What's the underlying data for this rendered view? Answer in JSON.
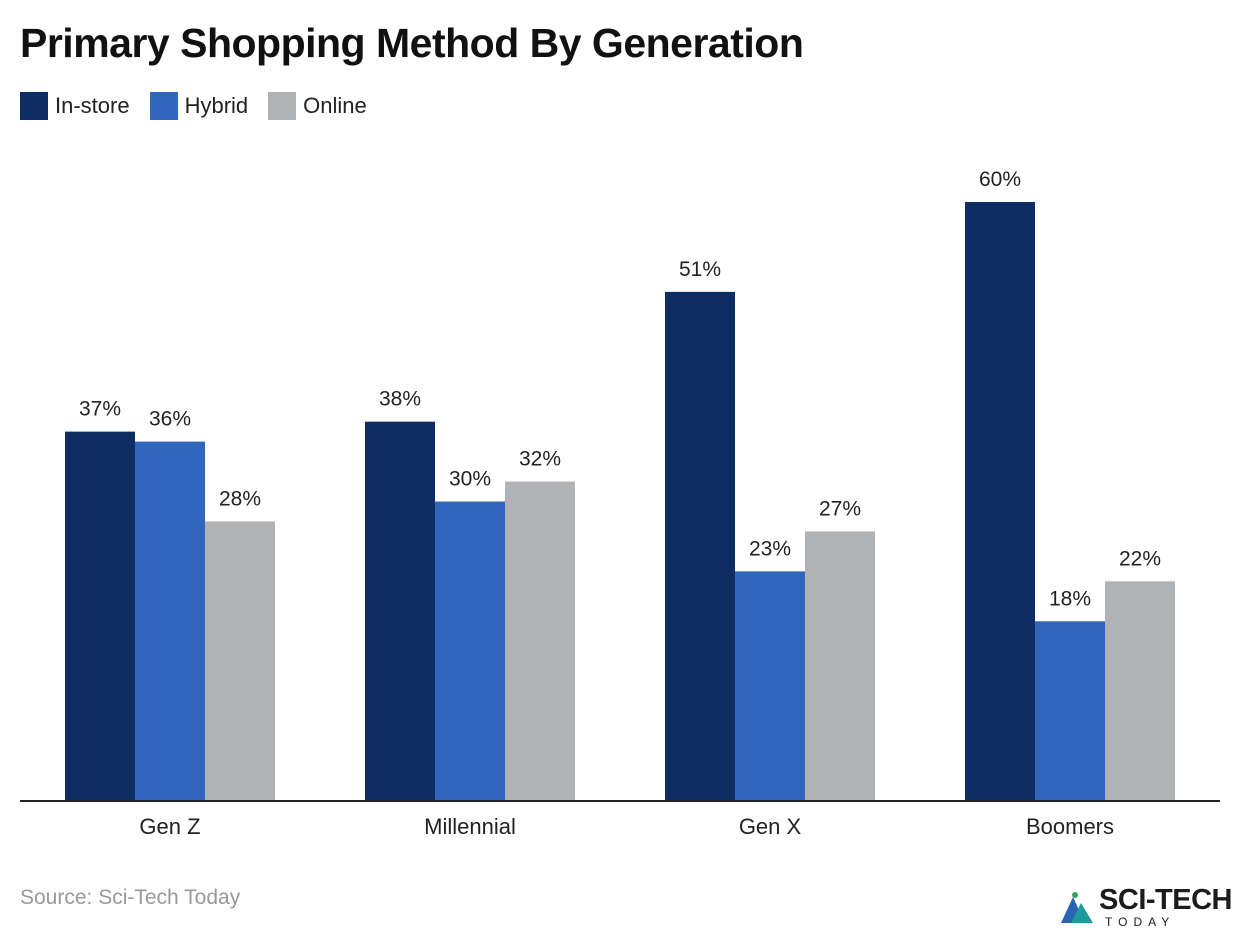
{
  "title": "Primary Shopping Method By Generation",
  "legend": [
    {
      "label": "In-store",
      "color": "#0e2d63"
    },
    {
      "label": "Hybrid",
      "color": "#3066bb"
    },
    {
      "label": "Online",
      "color": "#b1b2b4"
    }
  ],
  "source": "Source: Sci-Tech Today",
  "logo": {
    "main": "SCI-TECH",
    "sub": "TODAY"
  },
  "chart_data": {
    "type": "bar",
    "title": "Primary Shopping Method By Generation",
    "xlabel": "",
    "ylabel": "",
    "ylim": [
      0,
      60
    ],
    "grid": false,
    "legend_position": "top-left",
    "value_format": "percent",
    "categories": [
      "Gen Z",
      "Millennial",
      "Gen X",
      "Boomers"
    ],
    "series": [
      {
        "name": "In-store",
        "color": "#0e2d63",
        "values": [
          37,
          38,
          51,
          60
        ]
      },
      {
        "name": "Hybrid",
        "color": "#3066bb",
        "values": [
          36,
          30,
          23,
          18
        ]
      },
      {
        "name": "Online",
        "color": "#b1b2b4",
        "values": [
          28,
          32,
          27,
          22
        ]
      }
    ]
  }
}
